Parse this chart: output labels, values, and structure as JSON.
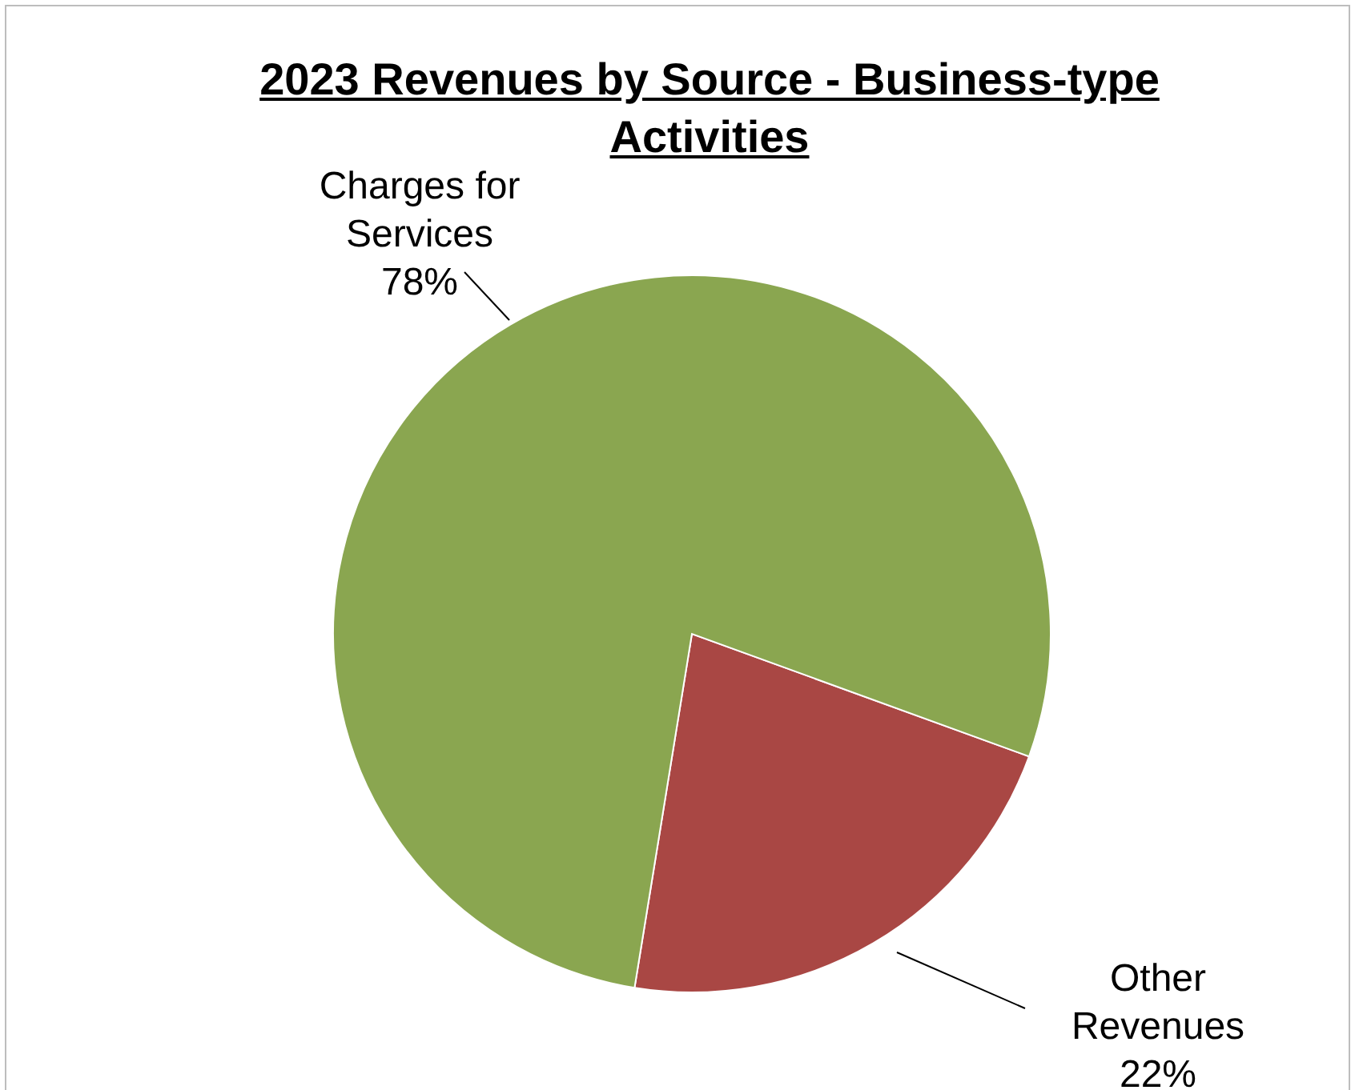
{
  "chart_data": {
    "type": "pie",
    "title": "2023 Revenues by Source - Business-type Activities",
    "categories": [
      "Other Revenues",
      "Charges for Services"
    ],
    "values": [
      22,
      78
    ],
    "colors": [
      "#a94744",
      "#8aa650"
    ],
    "value_labels": [
      "22%",
      "78%"
    ]
  }
}
